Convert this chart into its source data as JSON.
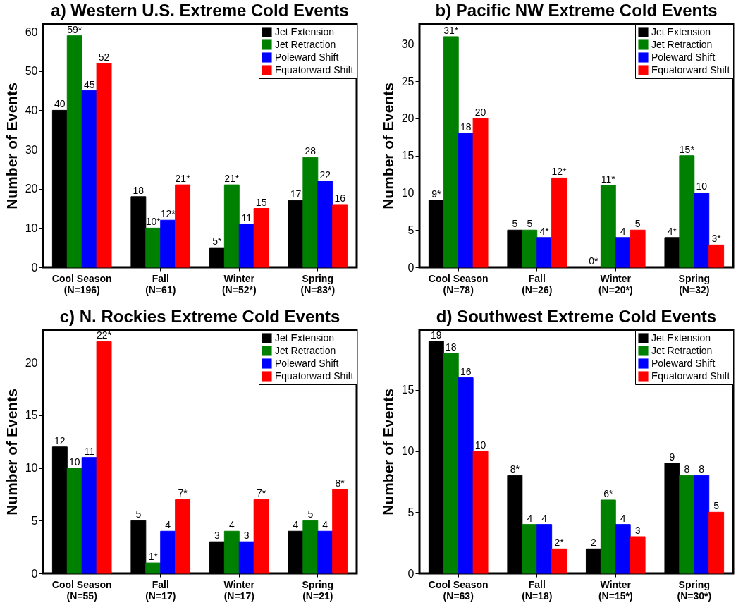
{
  "chart_data": [
    {
      "type": "bar",
      "title": "a) Western U.S. Extreme Cold Events",
      "ylabel": "Number of Events",
      "categories": [
        "Cool Season\n(N=196)",
        "Fall\n(N=61)",
        "Winter\n(N=52*)",
        "Spring\n(N=83*)"
      ],
      "ylim": [
        0,
        62
      ],
      "yticks": [
        0,
        10,
        20,
        30,
        40,
        50,
        60
      ],
      "grid": false,
      "legend": "top right",
      "series": [
        {
          "name": "Jet Extension",
          "color": "#000000",
          "values": [
            40,
            18,
            5,
            17
          ],
          "value_labels": [
            "40",
            "18",
            "5*",
            "17"
          ]
        },
        {
          "name": "Jet Retraction",
          "color": "#008000",
          "values": [
            59,
            10,
            21,
            28
          ],
          "value_labels": [
            "59*",
            "10*",
            "21*",
            "28"
          ]
        },
        {
          "name": "Poleward Shift",
          "color": "#0000ff",
          "values": [
            45,
            12,
            11,
            22
          ],
          "value_labels": [
            "45",
            "12*",
            "11",
            "22"
          ]
        },
        {
          "name": "Equatorward Shift",
          "color": "#ff0000",
          "values": [
            52,
            21,
            15,
            16
          ],
          "value_labels": [
            "52",
            "21*",
            "15",
            "16"
          ]
        }
      ]
    },
    {
      "type": "bar",
      "title": "b) Pacific NW Extreme Cold Events",
      "ylabel": "Number of Events",
      "categories": [
        "Cool Season\n(N=78)",
        "Fall\n(N=26)",
        "Winter\n(N=20*)",
        "Spring\n(N=32)"
      ],
      "ylim": [
        0,
        32.7
      ],
      "yticks": [
        0,
        5,
        10,
        15,
        20,
        25,
        30
      ],
      "grid": false,
      "legend": "top right",
      "series": [
        {
          "name": "Jet Extension",
          "color": "#000000",
          "values": [
            9,
            5,
            0,
            4
          ],
          "value_labels": [
            "9*",
            "5",
            "0*",
            "4*"
          ]
        },
        {
          "name": "Jet Retraction",
          "color": "#008000",
          "values": [
            31,
            5,
            11,
            15
          ],
          "value_labels": [
            "31*",
            "5",
            "11*",
            "15*"
          ]
        },
        {
          "name": "Poleward Shift",
          "color": "#0000ff",
          "values": [
            18,
            4,
            4,
            10
          ],
          "value_labels": [
            "18",
            "4*",
            "4",
            "10"
          ]
        },
        {
          "name": "Equatorward Shift",
          "color": "#ff0000",
          "values": [
            20,
            12,
            5,
            3
          ],
          "value_labels": [
            "20",
            "12*",
            "5",
            "3*"
          ]
        }
      ]
    },
    {
      "type": "bar",
      "title": "c) N. Rockies Extreme Cold Events",
      "ylabel": "Number of Events",
      "categories": [
        "Cool Season\n(N=55)",
        "Fall\n(N=17)",
        "Winter\n(N=17)",
        "Spring\n(N=21)"
      ],
      "ylim": [
        0,
        23.1
      ],
      "yticks": [
        0,
        5,
        10,
        15,
        20
      ],
      "grid": false,
      "legend": "top right",
      "series": [
        {
          "name": "Jet Extension",
          "color": "#000000",
          "values": [
            12,
            5,
            3,
            4
          ],
          "value_labels": [
            "12",
            "5",
            "3",
            "4"
          ]
        },
        {
          "name": "Jet Retraction",
          "color": "#008000",
          "values": [
            10,
            1,
            4,
            5
          ],
          "value_labels": [
            "10",
            "1*",
            "4",
            "5"
          ]
        },
        {
          "name": "Poleward Shift",
          "color": "#0000ff",
          "values": [
            11,
            4,
            3,
            4
          ],
          "value_labels": [
            "11",
            "4",
            "3",
            "4"
          ]
        },
        {
          "name": "Equatorward Shift",
          "color": "#ff0000",
          "values": [
            22,
            7,
            7,
            8
          ],
          "value_labels": [
            "22*",
            "7*",
            "7*",
            "8*"
          ]
        }
      ]
    },
    {
      "type": "bar",
      "title": "d) Southwest Extreme Cold Events",
      "ylabel": "Number of Events",
      "categories": [
        "Cool Season\n(N=63)",
        "Fall\n(N=18)",
        "Winter\n(N=15*)",
        "Spring\n(N=30*)"
      ],
      "ylim": [
        0,
        19.9
      ],
      "yticks": [
        0,
        5,
        10,
        15
      ],
      "grid": false,
      "legend": "top right",
      "series": [
        {
          "name": "Jet Extension",
          "color": "#000000",
          "values": [
            19,
            8,
            2,
            9
          ],
          "value_labels": [
            "19",
            "8*",
            "2",
            "9"
          ]
        },
        {
          "name": "Jet Retraction",
          "color": "#008000",
          "values": [
            18,
            4,
            6,
            8
          ],
          "value_labels": [
            "18",
            "4",
            "6*",
            "8"
          ]
        },
        {
          "name": "Poleward Shift",
          "color": "#0000ff",
          "values": [
            16,
            4,
            4,
            8
          ],
          "value_labels": [
            "16",
            "4",
            "4",
            "8"
          ]
        },
        {
          "name": "Equatorward Shift",
          "color": "#ff0000",
          "values": [
            10,
            2,
            3,
            5
          ],
          "value_labels": [
            "10",
            "2*",
            "3",
            "5"
          ]
        }
      ]
    }
  ]
}
